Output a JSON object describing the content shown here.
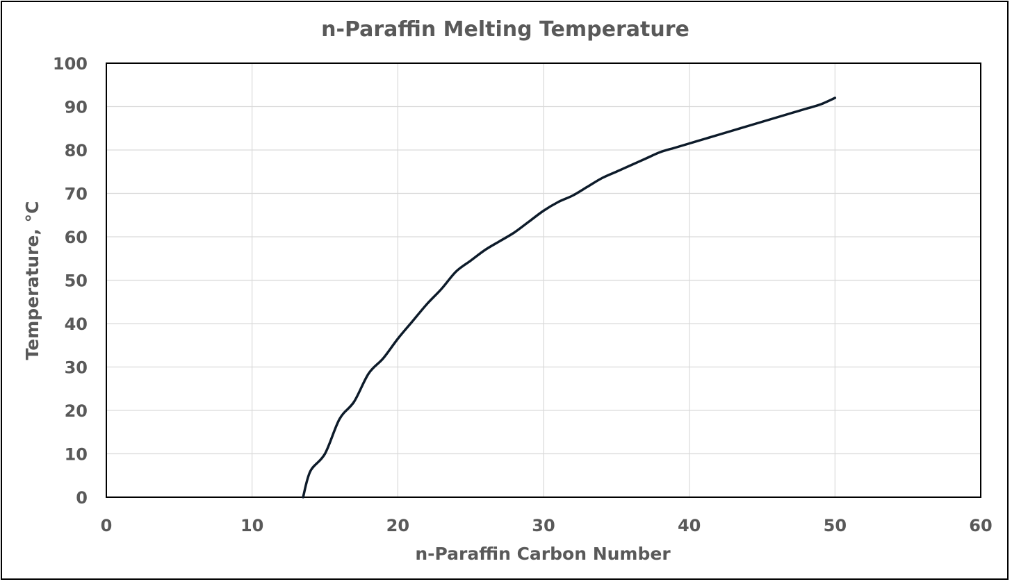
{
  "chart_data": {
    "type": "line",
    "title": "n-Paraffin Melting Temperature",
    "xlabel": "n-Paraffin Carbon Number",
    "ylabel": "Temperature, °C",
    "xlim": [
      0,
      60
    ],
    "ylim": [
      0,
      100
    ],
    "x_ticks": [
      0,
      10,
      20,
      30,
      40,
      50,
      60
    ],
    "y_ticks": [
      0,
      10,
      20,
      30,
      40,
      50,
      60,
      70,
      80,
      90,
      100
    ],
    "grid": true,
    "legend": "none",
    "series": [
      {
        "color": "#0d1b2a",
        "x": [
          13.5,
          14,
          15,
          16,
          17,
          18,
          19,
          20,
          21,
          22,
          23,
          24,
          25,
          26,
          27,
          28,
          29,
          30,
          31,
          32,
          33,
          34,
          35,
          36,
          37,
          38,
          39,
          40,
          41,
          42,
          43,
          44,
          45,
          46,
          47,
          48,
          49,
          50
        ],
        "y": [
          0,
          6,
          10,
          18,
          22,
          28.5,
          32,
          36.5,
          40.5,
          44.5,
          48,
          52,
          54.5,
          57,
          59,
          61,
          63.5,
          66,
          68,
          69.5,
          71.5,
          73.5,
          75,
          76.5,
          78,
          79.5,
          80.5,
          81.5,
          82.5,
          83.5,
          84.5,
          85.5,
          86.5,
          87.5,
          88.5,
          89.5,
          90.5,
          92
        ]
      }
    ]
  }
}
